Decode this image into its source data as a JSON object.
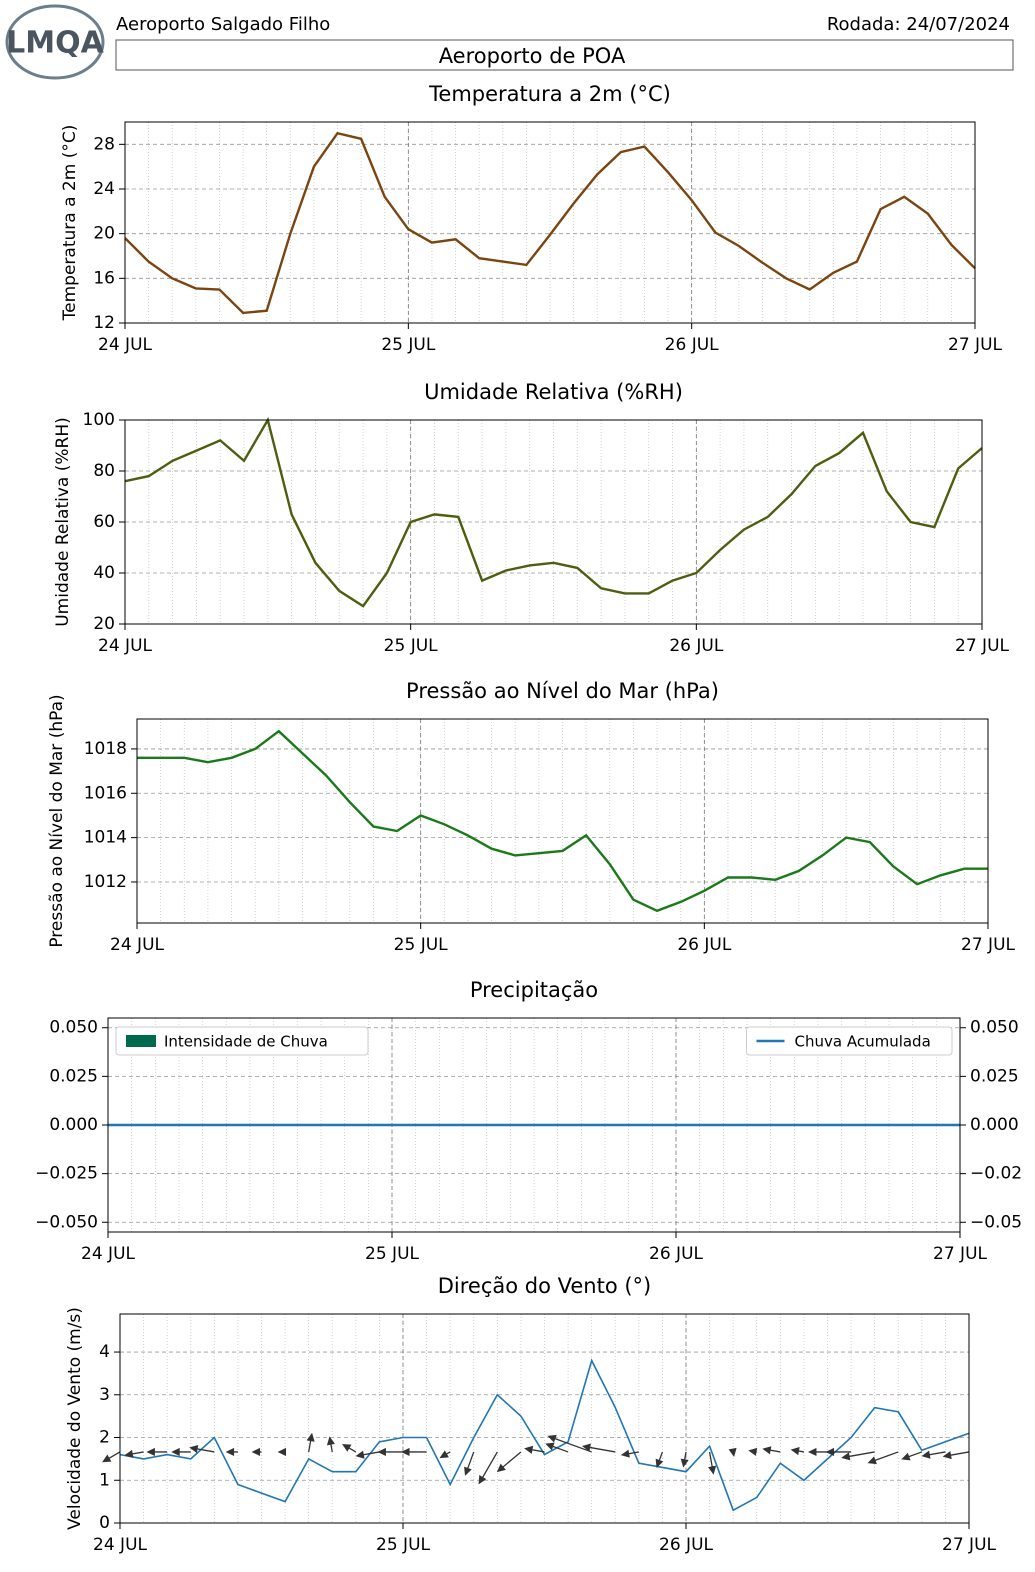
{
  "header": {
    "logo_text": "LMQA",
    "station": "Aeroporto Salgado Filho",
    "run": "Rodada: 24/07/2024",
    "location": "Aeroporto de POA"
  },
  "chart_data": [
    {
      "type": "line",
      "title": "Temperatura a 2m (°C)",
      "ylabel": "Temperatura a 2m (°C)",
      "x": [
        0,
        2,
        4,
        6,
        8,
        10,
        12,
        14,
        16,
        18,
        20,
        22,
        24,
        26,
        28,
        30,
        32,
        34,
        36,
        38,
        40,
        42,
        44,
        46,
        48,
        50,
        52,
        54,
        56,
        58,
        60,
        62,
        64,
        66,
        68,
        70,
        72
      ],
      "series": [
        {
          "name": "Temperatura",
          "color": "#7a4510",
          "values": [
            19.6,
            17.5,
            16.0,
            15.1,
            15.0,
            12.9,
            13.1,
            20.0,
            26.0,
            29.0,
            28.5,
            23.3,
            20.4,
            19.2,
            19.5,
            17.8,
            17.5,
            17.2,
            19.9,
            22.7,
            25.3,
            27.3,
            27.8,
            25.5,
            23.0,
            20.1,
            18.9,
            17.4,
            16.0,
            15.0,
            16.5,
            17.5,
            22.2,
            23.3,
            21.8,
            19.0,
            16.9
          ]
        }
      ],
      "xlim": [
        0,
        72
      ],
      "xticks": [
        {
          "value": 0,
          "label": "24 JUL"
        },
        {
          "value": 24,
          "label": "25 JUL"
        },
        {
          "value": 48,
          "label": "26 JUL"
        },
        {
          "value": 72,
          "label": "27 JUL"
        }
      ],
      "ylim": [
        12,
        30
      ],
      "yticks": [
        12,
        16,
        20,
        24,
        28
      ],
      "grid": true
    },
    {
      "type": "line",
      "title": "Umidade Relativa (%RH)",
      "ylabel": "Umidade Relativa (%RH)",
      "x": [
        0,
        2,
        4,
        6,
        8,
        10,
        12,
        14,
        16,
        18,
        20,
        22,
        24,
        26,
        28,
        30,
        32,
        34,
        36,
        38,
        40,
        42,
        44,
        46,
        48,
        50,
        52,
        54,
        56,
        58,
        60,
        62,
        64,
        66,
        68,
        70,
        72
      ],
      "series": [
        {
          "name": "Umidade",
          "color": "#4d5e10",
          "values": [
            76,
            78,
            84,
            88,
            92,
            84,
            100,
            63,
            44,
            33,
            27,
            40,
            60,
            63,
            62,
            37,
            41,
            43,
            44,
            42,
            34,
            32,
            32,
            37,
            40,
            49,
            57,
            62,
            71,
            82,
            87,
            95,
            72,
            60,
            58,
            81,
            89
          ]
        }
      ],
      "xlim": [
        0,
        72
      ],
      "xticks": [
        {
          "value": 0,
          "label": "24 JUL"
        },
        {
          "value": 24,
          "label": "25 JUL"
        },
        {
          "value": 48,
          "label": "26 JUL"
        },
        {
          "value": 72,
          "label": "27 JUL"
        }
      ],
      "ylim": [
        20,
        100
      ],
      "yticks": [
        20,
        40,
        60,
        80,
        100
      ],
      "grid": true
    },
    {
      "type": "line",
      "title": "Pressão ao Nível do Mar (hPa)",
      "ylabel": "Pressão ao Nível do Mar (hPa)",
      "x": [
        0,
        2,
        4,
        6,
        8,
        10,
        12,
        14,
        16,
        18,
        20,
        22,
        24,
        26,
        28,
        30,
        32,
        34,
        36,
        38,
        40,
        42,
        44,
        46,
        48,
        50,
        52,
        54,
        56,
        58,
        60,
        62,
        64,
        66,
        68,
        70,
        72
      ],
      "series": [
        {
          "name": "Pressão",
          "color": "#1a7a1a",
          "values": [
            1017.6,
            1017.6,
            1017.6,
            1017.4,
            1017.6,
            1018.0,
            1018.8,
            1017.8,
            1016.8,
            1015.6,
            1014.5,
            1014.3,
            1015.0,
            1014.6,
            1014.1,
            1013.5,
            1013.2,
            1013.3,
            1013.4,
            1014.1,
            1012.8,
            1011.2,
            1010.7,
            1011.1,
            1011.6,
            1012.2,
            1012.2,
            1012.1,
            1012.5,
            1013.2,
            1014.0,
            1013.8,
            1012.7,
            1011.9,
            1012.3,
            1012.6,
            1012.6
          ]
        }
      ],
      "xlim": [
        0,
        72
      ],
      "xticks": [
        {
          "value": 0,
          "label": "24 JUL"
        },
        {
          "value": 24,
          "label": "25 JUL"
        },
        {
          "value": 48,
          "label": "26 JUL"
        },
        {
          "value": 72,
          "label": "27 JUL"
        }
      ],
      "ylim": [
        1010.15,
        1019.35
      ],
      "yticks": [
        1012,
        1014,
        1016,
        1018
      ],
      "grid": true
    },
    {
      "type": "bar",
      "title": "Precipitação",
      "x": [
        0,
        2,
        4,
        6,
        8,
        10,
        12,
        14,
        16,
        18,
        20,
        22,
        24,
        26,
        28,
        30,
        32,
        34,
        36,
        38,
        40,
        42,
        44,
        46,
        48,
        50,
        52,
        54,
        56,
        58,
        60,
        62,
        64,
        66,
        68,
        70,
        72
      ],
      "series": [
        {
          "name": "Intensidade de Chuva",
          "color": "#006a4e",
          "legend": "upper left",
          "values": [
            0,
            0,
            0,
            0,
            0,
            0,
            0,
            0,
            0,
            0,
            0,
            0,
            0,
            0,
            0,
            0,
            0,
            0,
            0,
            0,
            0,
            0,
            0,
            0,
            0,
            0,
            0,
            0,
            0,
            0,
            0,
            0,
            0,
            0,
            0,
            0,
            0
          ]
        },
        {
          "name": "Chuva Acumulada",
          "color": "#1f77b4",
          "axis": "y2",
          "legend": "upper right",
          "values": [
            0,
            0,
            0,
            0,
            0,
            0,
            0,
            0,
            0,
            0,
            0,
            0,
            0,
            0,
            0,
            0,
            0,
            0,
            0,
            0,
            0,
            0,
            0,
            0,
            0,
            0,
            0,
            0,
            0,
            0,
            0,
            0,
            0,
            0,
            0,
            0,
            0
          ]
        }
      ],
      "xlim": [
        0,
        72
      ],
      "xticks": [
        {
          "value": 0,
          "label": "24 JUL"
        },
        {
          "value": 24,
          "label": "25 JUL"
        },
        {
          "value": 48,
          "label": "26 JUL"
        },
        {
          "value": 72,
          "label": "27 JUL"
        }
      ],
      "ylim": [
        -0.055,
        0.055
      ],
      "yticks": [
        {
          "value": -0.05,
          "label": "−0.050"
        },
        {
          "value": -0.025,
          "label": "−0.025"
        },
        {
          "value": 0,
          "label": "0.000"
        },
        {
          "value": 0.025,
          "label": "0.025"
        },
        {
          "value": 0.05,
          "label": "0.050"
        }
      ],
      "y2lim": [
        -0.055,
        0.055
      ],
      "y2ticks": [
        {
          "value": -0.05,
          "label": "−0.05"
        },
        {
          "value": -0.025,
          "label": "−0.02"
        },
        {
          "value": 0,
          "label": "0.000"
        },
        {
          "value": 0.025,
          "label": "0.025"
        },
        {
          "value": 0.05,
          "label": "0.050"
        }
      ],
      "grid": true
    },
    {
      "type": "line",
      "title": "Direção do Vento (°)",
      "ylabel": "Velocidade do Vento (m/s)",
      "x": [
        0,
        2,
        4,
        6,
        8,
        10,
        12,
        14,
        16,
        18,
        20,
        22,
        24,
        26,
        28,
        30,
        32,
        34,
        36,
        38,
        40,
        42,
        44,
        46,
        48,
        50,
        52,
        54,
        56,
        58,
        60,
        62,
        64,
        66,
        68,
        70,
        72
      ],
      "series": [
        {
          "name": "Velocidade",
          "color": "#1f77b4",
          "values": [
            1.6,
            1.5,
            1.6,
            1.5,
            2.0,
            0.9,
            0.7,
            0.5,
            1.5,
            1.2,
            1.2,
            1.9,
            2.0,
            2.0,
            0.9,
            2.0,
            3.0,
            2.5,
            1.6,
            1.9,
            3.8,
            2.7,
            1.4,
            1.3,
            1.2,
            1.8,
            0.3,
            0.6,
            1.4,
            1.0,
            1.5,
            2.0,
            2.7,
            2.6,
            1.7,
            1.9,
            2.1
          ]
        }
      ],
      "directions": [
        60,
        80,
        90,
        90,
        100,
        90,
        90,
        90,
        190,
        170,
        120,
        80,
        90,
        90,
        60,
        20,
        30,
        50,
        100,
        110,
        110,
        100,
        80,
        20,
        10,
        350,
        350,
        100,
        100,
        100,
        90,
        90,
        80,
        70,
        70,
        80,
        80
      ],
      "xlim": [
        0,
        72
      ],
      "xticks": [
        {
          "value": 0,
          "label": "24 JUL"
        },
        {
          "value": 24,
          "label": "25 JUL"
        },
        {
          "value": 48,
          "label": "26 JUL"
        },
        {
          "value": 72,
          "label": "27 JUL"
        }
      ],
      "ylim": [
        0,
        4.89
      ],
      "yticks": [
        0,
        1,
        2,
        3,
        4
      ],
      "grid": true
    }
  ]
}
